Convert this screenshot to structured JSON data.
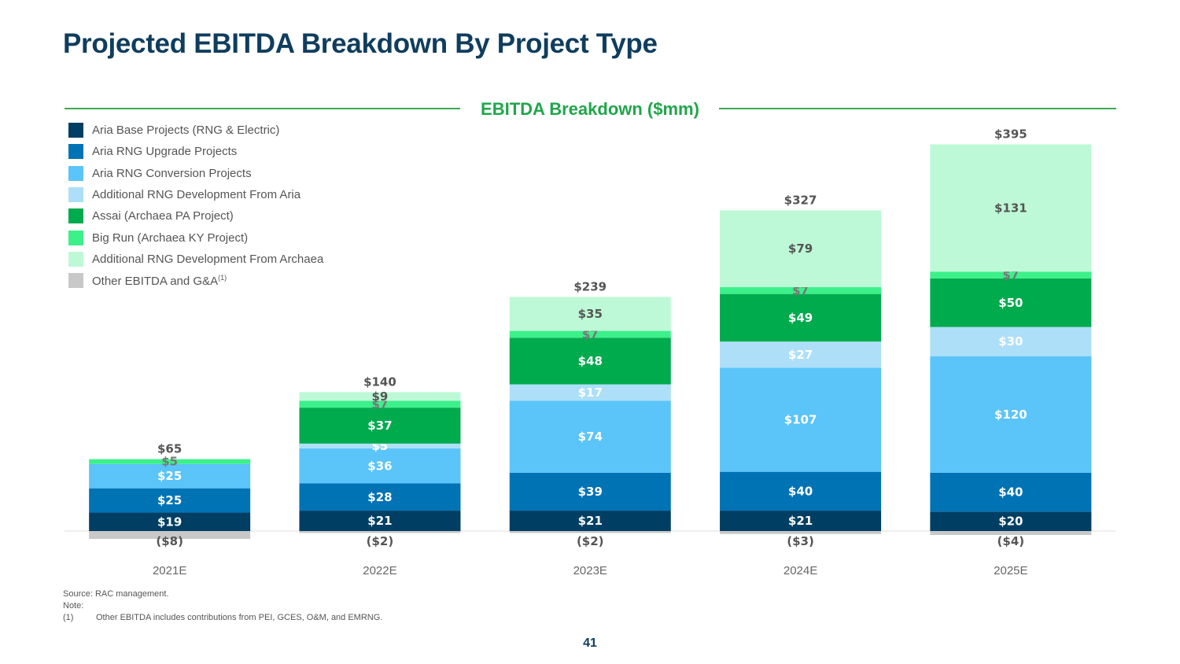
{
  "slide": {
    "title": "Projected EBITDA Breakdown By Project Type",
    "page_number": "41"
  },
  "footer": {
    "source": "Source: RAC management.",
    "note": "Note:",
    "footnote_num": "(1)",
    "footnote_text": "Other EBITDA includes contributions from PEI, GCES, O&M, and EMRNG."
  },
  "chart_data": {
    "type": "bar",
    "stacked": true,
    "title": "EBITDA Breakdown ($mm)",
    "categories": [
      "2021E",
      "2022E",
      "2023E",
      "2024E",
      "2025E"
    ],
    "totals": [
      "$65",
      "$140",
      "$239",
      "$327",
      "$395"
    ],
    "grid": false,
    "legend_position": "top-left",
    "series": [
      {
        "name": "Aria Base Projects (RNG & Electric)",
        "color": "#003f63",
        "label_color": "#ffffff",
        "values": [
          19,
          21,
          21,
          21,
          20
        ],
        "labels": [
          "$19",
          "$21",
          "$21",
          "$21",
          "$20"
        ]
      },
      {
        "name": "Aria RNG Upgrade Projects",
        "color": "#0073b5",
        "label_color": "#ffffff",
        "values": [
          25,
          28,
          39,
          40,
          40
        ],
        "labels": [
          "$25",
          "$28",
          "$39",
          "$40",
          "$40"
        ]
      },
      {
        "name": "Aria RNG Conversion Projects",
        "color": "#5bc4f8",
        "label_color": "#ffffff",
        "values": [
          25,
          36,
          74,
          107,
          120
        ],
        "labels": [
          "$25",
          "$36",
          "$74",
          "$107",
          "$120"
        ]
      },
      {
        "name": "Additional RNG Development From Aria",
        "color": "#addff9",
        "label_color": "#ffffff",
        "values": [
          0,
          5,
          17,
          27,
          30
        ],
        "labels": [
          "",
          "$5",
          "$17",
          "$27",
          "$30"
        ]
      },
      {
        "name": "Assai (Archaea PA Project)",
        "color": "#00ab4e",
        "label_color": "#ffffff",
        "values": [
          0,
          37,
          48,
          49,
          50
        ],
        "labels": [
          "",
          "$37",
          "$48",
          "$49",
          "$50"
        ]
      },
      {
        "name": "Big Run (Archaea KY Project)",
        "color": "#3cf08a",
        "label_color": "#777777",
        "values": [
          5,
          7,
          7,
          7,
          7
        ],
        "labels": [
          "$5",
          "$7",
          "$7",
          "$7",
          "$7"
        ]
      },
      {
        "name": "Additional RNG Development From Archaea",
        "color": "#bdf9d6",
        "label_color": "#555555",
        "values": [
          0,
          9,
          35,
          79,
          131
        ],
        "labels": [
          "",
          "$9",
          "$35",
          "$79",
          "$131"
        ]
      },
      {
        "name": "Other EBITDA and G&A",
        "name_sup": "(1)",
        "color": "#c8c8c8",
        "label_color": "#555555",
        "values": [
          -8,
          -2,
          -2,
          -3,
          -4
        ],
        "labels": [
          "($8)",
          "($2)",
          "($2)",
          "($3)",
          "($4)"
        ]
      }
    ]
  }
}
